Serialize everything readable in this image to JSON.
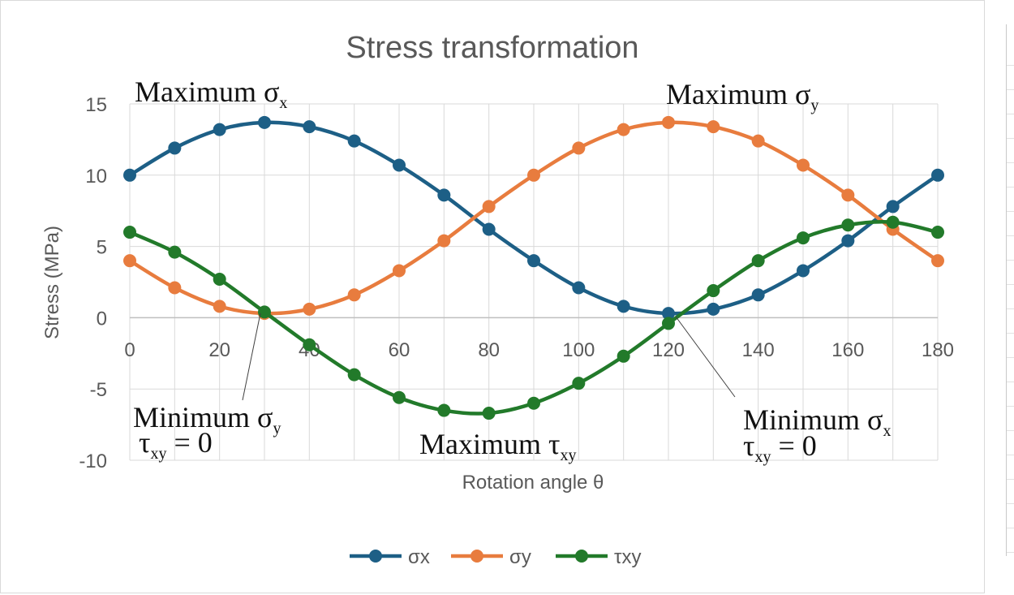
{
  "chart_data": {
    "type": "line",
    "title": "Stress transformation",
    "xlabel": "Rotation angle θ",
    "ylabel": "Stress (MPa)",
    "xlim": [
      0,
      180
    ],
    "ylim": [
      -10,
      15
    ],
    "x_ticks": [
      0,
      20,
      40,
      60,
      80,
      100,
      120,
      140,
      160,
      180
    ],
    "y_ticks": [
      15,
      10,
      5,
      0,
      -5,
      -10
    ],
    "grid": true,
    "legend_position": "bottom",
    "x": [
      0,
      10,
      20,
      30,
      40,
      50,
      60,
      70,
      80,
      90,
      100,
      110,
      120,
      130,
      140,
      150,
      160,
      170,
      180
    ],
    "series": [
      {
        "name": "σx",
        "color": "#1d5f86",
        "values": [
          10.0,
          11.9,
          13.2,
          13.7,
          13.4,
          12.4,
          10.7,
          8.6,
          6.2,
          4.0,
          2.1,
          0.8,
          0.3,
          0.6,
          1.6,
          3.3,
          5.4,
          7.8,
          10.0
        ]
      },
      {
        "name": "σy",
        "color": "#e87c3e",
        "values": [
          4.0,
          2.1,
          0.8,
          0.3,
          0.6,
          1.6,
          3.3,
          5.4,
          7.8,
          10.0,
          11.9,
          13.2,
          13.7,
          13.4,
          12.4,
          10.7,
          8.6,
          6.2,
          4.0
        ]
      },
      {
        "name": "τxy",
        "color": "#227a2a",
        "values": [
          6.0,
          4.6,
          2.7,
          0.4,
          -1.9,
          -4.0,
          -5.6,
          -6.5,
          -6.7,
          -6.0,
          -4.6,
          -2.7,
          -0.4,
          1.9,
          4.0,
          5.6,
          6.5,
          6.7,
          6.0
        ]
      }
    ],
    "annotations": [
      {
        "id": "max-sx",
        "main": "Maximum σ",
        "sub": "x"
      },
      {
        "id": "max-sy",
        "main": "Maximum σ",
        "sub": "y"
      },
      {
        "id": "min-sy",
        "main": "Minimum σ",
        "sub": "y",
        "line2_main": "τ",
        "line2_sub": "xy",
        "line2_rest": " = 0"
      },
      {
        "id": "max-txy",
        "main": "Maximum τ",
        "sub": "xy"
      },
      {
        "id": "min-sx",
        "main": "Minimum σ",
        "sub": "x",
        "line2_main": "τ",
        "line2_sub": "xy",
        "line2_rest": " = 0"
      }
    ]
  }
}
